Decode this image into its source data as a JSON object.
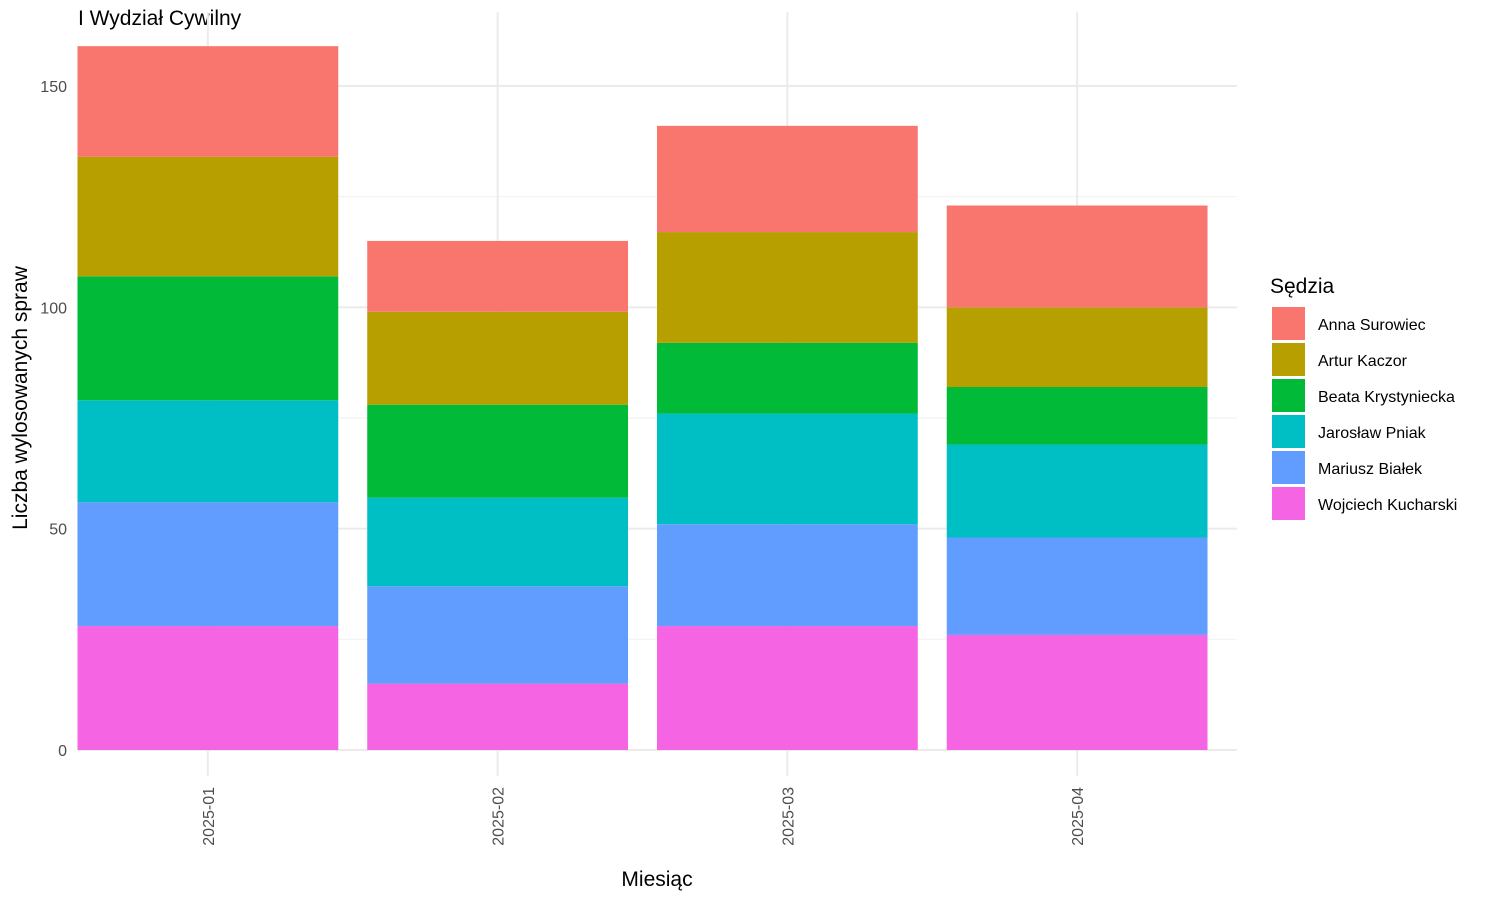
{
  "chart_data": {
    "type": "bar",
    "stacked": true,
    "title": "I Wydział Cywilny",
    "xlabel": "Miesiąc",
    "ylabel": "Liczba wylosowanych spraw",
    "ylim": [
      0,
      160
    ],
    "yticks": [
      0,
      50,
      100,
      150
    ],
    "grid": true,
    "legend_title": "Sędzia",
    "legend_position": "right",
    "categories": [
      "2025-01",
      "2025-02",
      "2025-03",
      "2025-04"
    ],
    "series": [
      {
        "name": "Anna Surowiec",
        "color": "#F8766D",
        "values": [
          25,
          16,
          24,
          23
        ]
      },
      {
        "name": "Artur Kaczor",
        "color": "#B79F00",
        "values": [
          27,
          21,
          25,
          18
        ]
      },
      {
        "name": "Beata Krystyniecka",
        "color": "#00BA38",
        "values": [
          28,
          21,
          16,
          13
        ]
      },
      {
        "name": "Jarosław Pniak",
        "color": "#00BFC4",
        "values": [
          23,
          20,
          25,
          21
        ]
      },
      {
        "name": "Mariusz Białek",
        "color": "#619CFF",
        "values": [
          28,
          22,
          23,
          22
        ]
      },
      {
        "name": "Wojciech Kucharski",
        "color": "#F564E3",
        "values": [
          28,
          15,
          28,
          26
        ]
      }
    ]
  }
}
